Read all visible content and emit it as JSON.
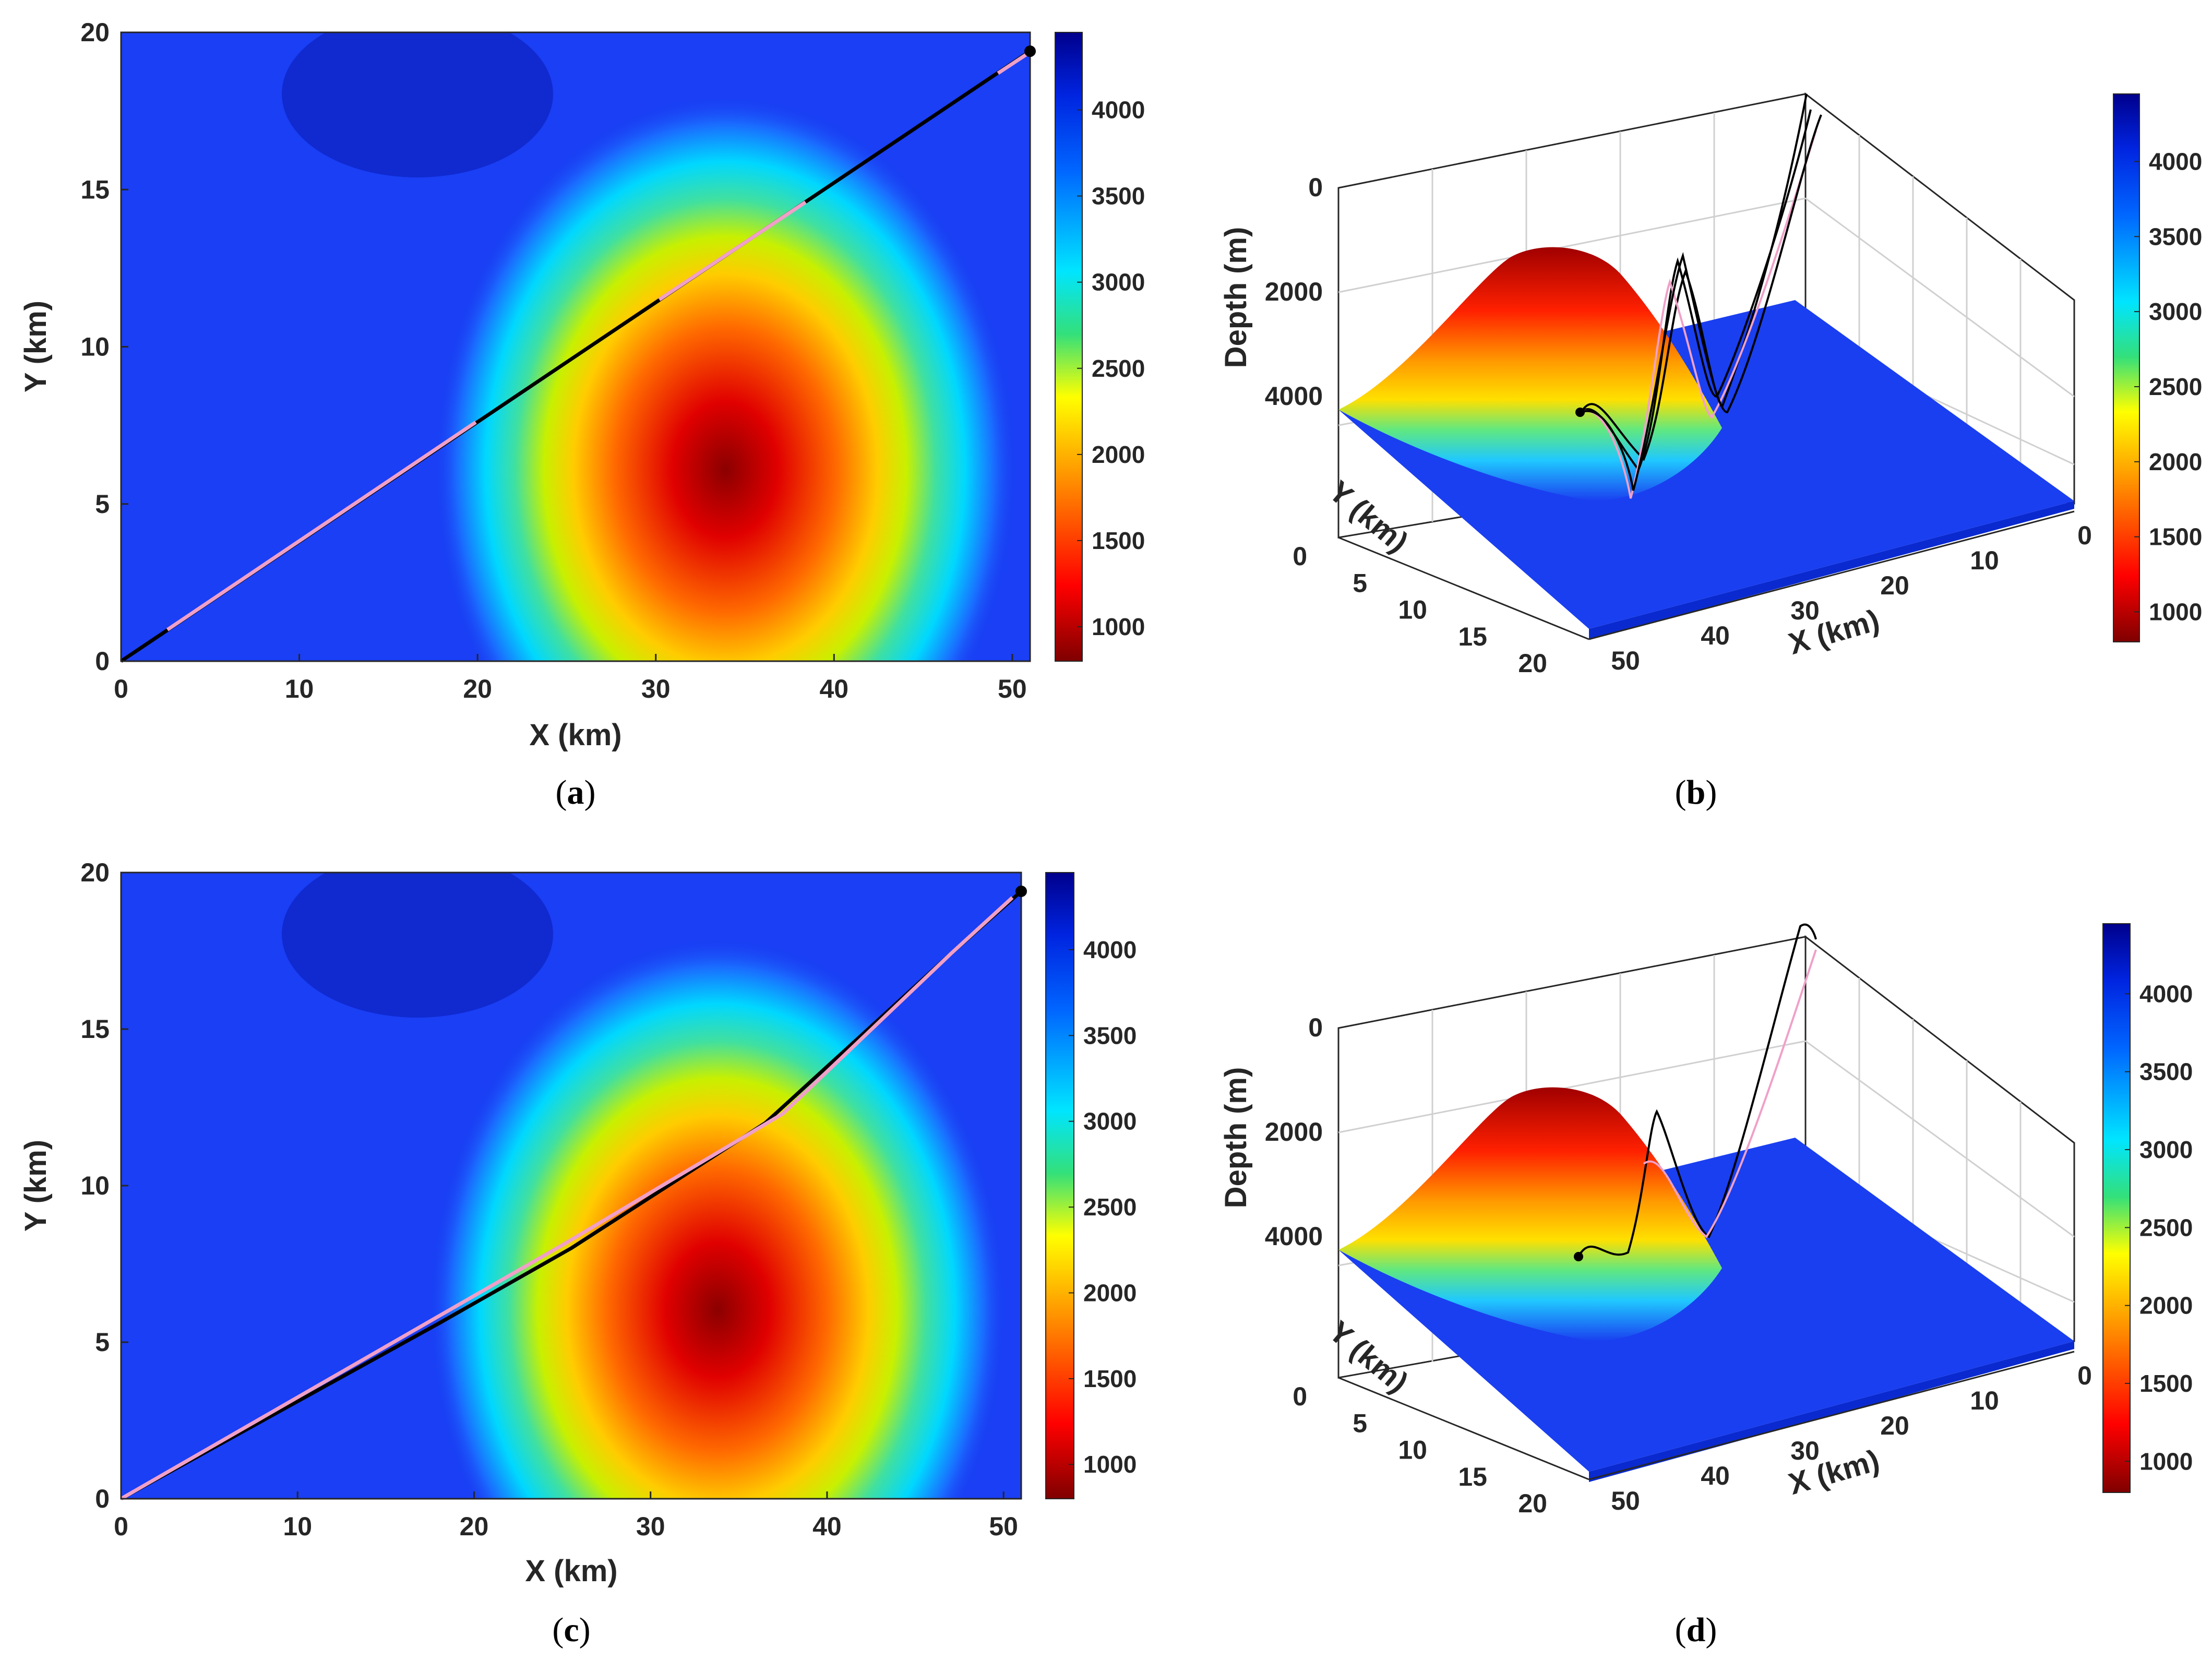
{
  "chart_data": [
    {
      "panel": "a",
      "type": "heatmap",
      "title": "",
      "xlabel": "X (km)",
      "ylabel": "Y (km)",
      "xlim": [
        0,
        51
      ],
      "ylim": [
        0,
        20
      ],
      "xticks": [
        0,
        10,
        20,
        30,
        40,
        50
      ],
      "yticks": [
        0,
        5,
        10,
        15,
        20
      ],
      "colorbar": {
        "range": [
          800,
          4450
        ],
        "ticks": [
          1000,
          1500,
          2000,
          2500,
          3000,
          3500,
          4000
        ],
        "colormap": "jet-reversed"
      },
      "series": [
        {
          "name": "path-black",
          "color": "#000000",
          "points": [
            [
              0,
              0
            ],
            [
              51,
              19.4
            ]
          ]
        },
        {
          "name": "path-pink",
          "color": "#f0a0c8",
          "segments": [
            [
              [
                2.6,
                1.0
              ],
              [
                19.9,
                7.6
              ]
            ],
            [
              [
                30.2,
                11.5
              ],
              [
                38.4,
                14.6
              ]
            ],
            [
              [
                49.2,
                18.7
              ],
              [
                50.8,
                19.3
              ]
            ]
          ]
        }
      ],
      "endpoint": [
        51,
        19.4
      ],
      "caption": "a"
    },
    {
      "panel": "b",
      "type": "surface",
      "xlabel": "X (km)",
      "ylabel": "Y (km)",
      "zlabel": "Depth (m)",
      "xticks": [
        0,
        10,
        20,
        30,
        40,
        50
      ],
      "yticks": [
        0,
        5,
        10,
        15,
        20
      ],
      "zticks": [
        0,
        2000,
        4000
      ],
      "colorbar": {
        "range": [
          800,
          4450
        ],
        "ticks": [
          1000,
          1500,
          2000,
          2500,
          3000,
          3500,
          4000
        ],
        "colormap": "jet-reversed"
      },
      "series": [
        {
          "name": "paths-black",
          "color": "#000000"
        },
        {
          "name": "paths-pink",
          "color": "#f0a0c8"
        }
      ],
      "caption": "b"
    },
    {
      "panel": "c",
      "type": "heatmap",
      "title": "",
      "xlabel": "X (km)",
      "ylabel": "Y (km)",
      "xlim": [
        0,
        51
      ],
      "ylim": [
        0,
        20
      ],
      "xticks": [
        0,
        10,
        20,
        30,
        40,
        50
      ],
      "yticks": [
        0,
        5,
        10,
        15,
        20
      ],
      "colorbar": {
        "range": [
          800,
          4450
        ],
        "ticks": [
          1000,
          1500,
          2000,
          2500,
          3000,
          3500,
          4000
        ],
        "colormap": "jet-reversed"
      },
      "series": [
        {
          "name": "path-black",
          "color": "#000000",
          "points": [
            [
              0,
              0
            ],
            [
              18,
              5.6
            ],
            [
              25.5,
              8
            ],
            [
              36.5,
              12
            ],
            [
              47,
              17.4
            ],
            [
              51,
              19.4
            ]
          ]
        },
        {
          "name": "path-pink",
          "color": "#f0a0c8",
          "points": [
            [
              0,
              0
            ],
            [
              25,
              8.1
            ],
            [
              37.5,
              12.3
            ],
            [
              47,
              17.4
            ],
            [
              50.5,
              19.2
            ]
          ]
        }
      ],
      "endpoint": [
        51,
        19.4
      ],
      "caption": "c"
    },
    {
      "panel": "d",
      "type": "surface",
      "xlabel": "X (km)",
      "ylabel": "Y (km)",
      "zlabel": "Depth (m)",
      "xticks": [
        0,
        10,
        20,
        30,
        40,
        50
      ],
      "yticks": [
        0,
        5,
        10,
        15,
        20
      ],
      "zticks": [
        0,
        2000,
        4000
      ],
      "colorbar": {
        "range": [
          800,
          4450
        ],
        "ticks": [
          1000,
          1500,
          2000,
          2500,
          3000,
          3500,
          4000
        ],
        "colormap": "jet-reversed"
      },
      "series": [
        {
          "name": "path-black",
          "color": "#000000"
        },
        {
          "name": "path-pink",
          "color": "#f0a0c8"
        }
      ],
      "caption": "d"
    }
  ]
}
